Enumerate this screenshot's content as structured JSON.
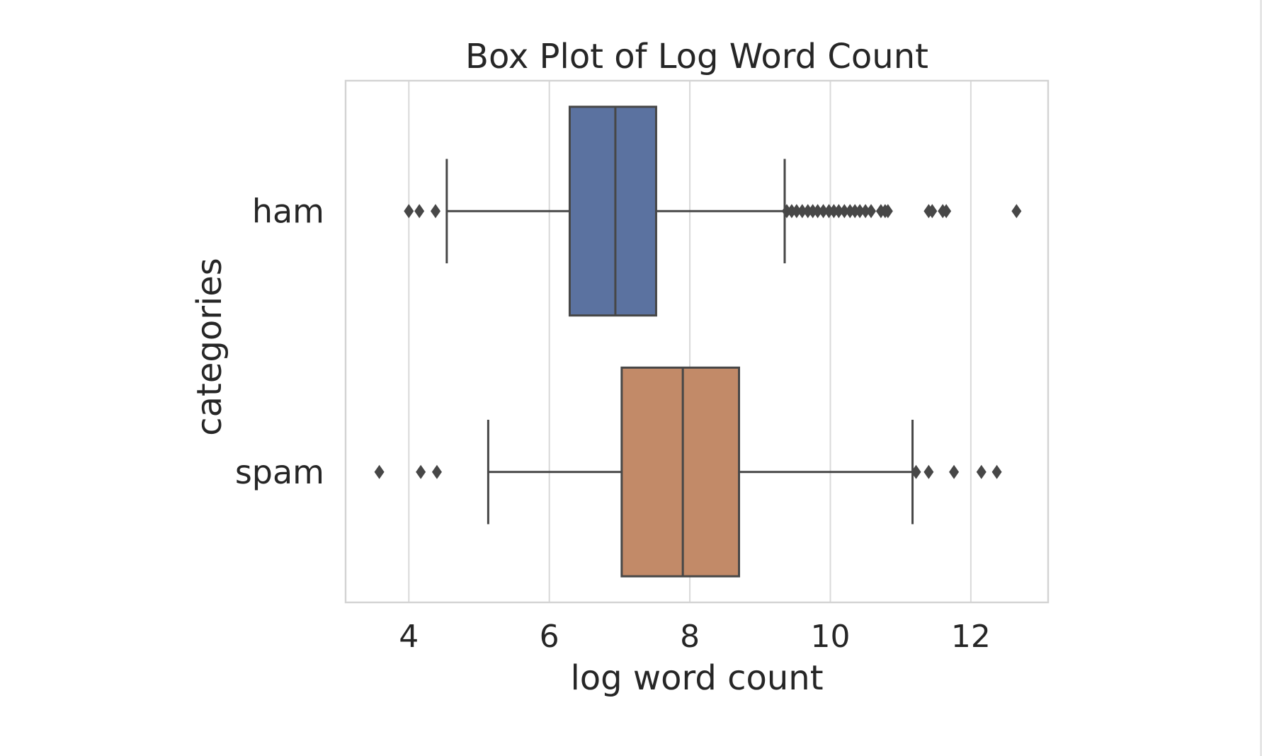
{
  "chart_data": {
    "type": "boxplot",
    "orientation": "horizontal",
    "title": "Box Plot of Log Word Count",
    "xlabel": "log word count",
    "ylabel": "categories",
    "xlim": [
      3.1,
      13.1
    ],
    "xticks": [
      4,
      6,
      8,
      10,
      12
    ],
    "grid": "x",
    "categories": [
      "ham",
      "spam"
    ],
    "series": [
      {
        "name": "ham",
        "color": "#5b72a0",
        "whisker_low": 4.54,
        "q1": 6.29,
        "median": 6.94,
        "q3": 7.52,
        "whisker_high": 9.35,
        "outliers": [
          4.0,
          4.15,
          4.38,
          9.38,
          9.45,
          9.52,
          9.6,
          9.68,
          9.75,
          9.82,
          9.9,
          9.98,
          10.05,
          10.12,
          10.2,
          10.28,
          10.35,
          10.42,
          10.5,
          10.58,
          10.72,
          10.78,
          10.82,
          11.4,
          11.45,
          11.6,
          11.65,
          12.65
        ]
      },
      {
        "name": "spam",
        "color": "#c28a68",
        "whisker_low": 5.13,
        "q1": 7.03,
        "median": 7.9,
        "q3": 8.7,
        "whisker_high": 11.17,
        "outliers": [
          3.58,
          4.17,
          4.4,
          11.22,
          11.4,
          11.76,
          12.15,
          12.37
        ]
      }
    ]
  }
}
